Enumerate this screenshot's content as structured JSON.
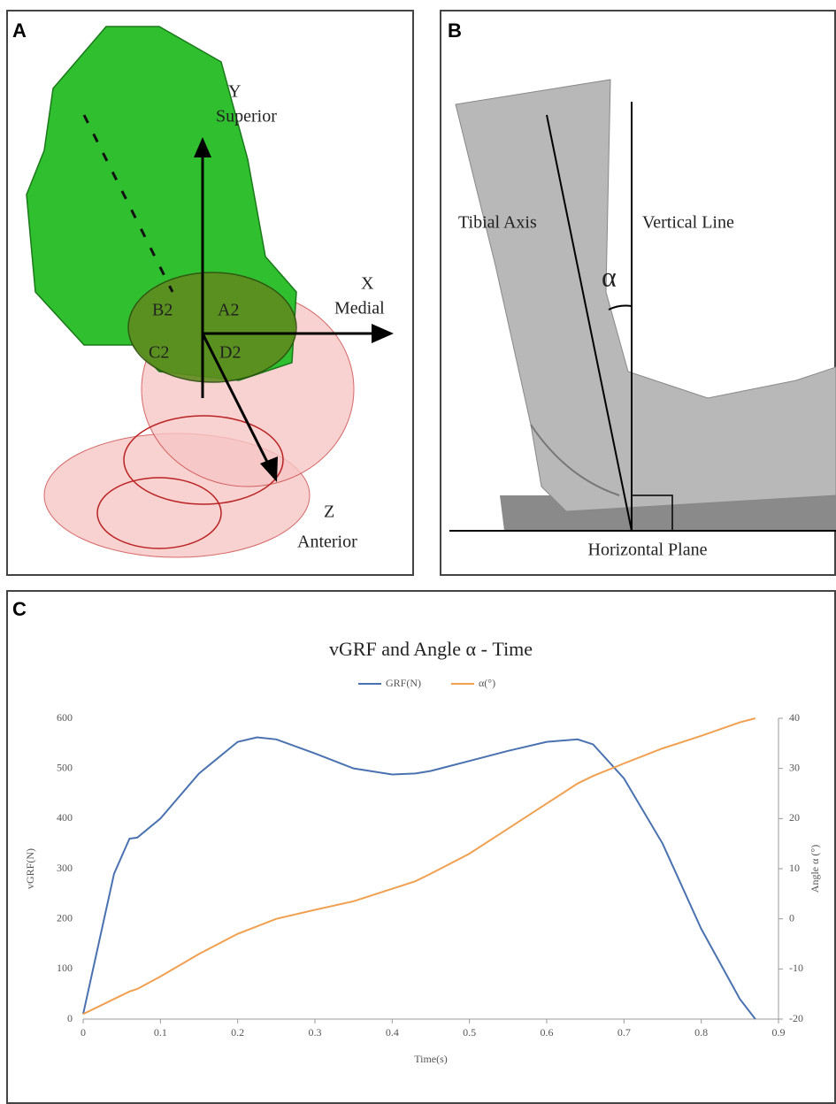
{
  "panel_a": {
    "label": "A",
    "y_axis": "Y",
    "y_name": "Superior",
    "x_axis": "X",
    "x_name": "Medial",
    "z_axis": "Z",
    "z_name": "Anterior",
    "regions": [
      "B2",
      "A2",
      "C2",
      "D2"
    ]
  },
  "panel_b": {
    "label": "B",
    "tibial_axis": "Tibial Axis",
    "vertical_line": "Vertical Line",
    "angle": "α",
    "horizontal_plane": "Horizontal Plane"
  },
  "chart_data": {
    "type": "line",
    "panel_label": "C",
    "title": "vGRF and Angle α - Time",
    "x_label": "Time(s)",
    "y_label": "vGRF(N)",
    "y2_label": "Angle α (°)",
    "x": [
      0,
      0.02,
      0.04,
      0.06,
      0.07,
      0.1,
      0.15,
      0.2,
      0.225,
      0.25,
      0.3,
      0.35,
      0.4,
      0.43,
      0.45,
      0.5,
      0.55,
      0.6,
      0.64,
      0.66,
      0.7,
      0.75,
      0.8,
      0.85,
      0.87
    ],
    "series": [
      {
        "name": "GRF(N)",
        "color": "#4a72b0",
        "values": [
          10,
          150,
          290,
          360,
          362,
          400,
          490,
          553,
          562,
          558,
          530,
          500,
          488,
          490,
          495,
          515,
          535,
          553,
          558,
          548,
          480,
          350,
          180,
          40,
          0
        ]
      },
      {
        "name": "α(°)",
        "color": "#f0a050",
        "axis": "y2",
        "values": [
          -19,
          -17.5,
          -16,
          -14.5,
          -14,
          -11.5,
          -7,
          -3,
          -1.5,
          0,
          1.8,
          3.5,
          6,
          7.5,
          9,
          13,
          18,
          23,
          27,
          28.5,
          31,
          34,
          36.5,
          39.2,
          40
        ]
      }
    ],
    "xlim": [
      0,
      0.9
    ],
    "xticks": [
      0,
      0.1,
      0.2,
      0.3,
      0.4,
      0.5,
      0.6,
      0.7,
      0.8,
      0.9
    ],
    "ylim": [
      0,
      600
    ],
    "yticks": [
      0,
      100,
      200,
      300,
      400,
      500,
      600
    ],
    "y2lim": [
      -20,
      40
    ],
    "y2ticks": [
      -20,
      -10,
      0,
      10,
      20,
      30,
      40
    ],
    "legend": "top"
  }
}
